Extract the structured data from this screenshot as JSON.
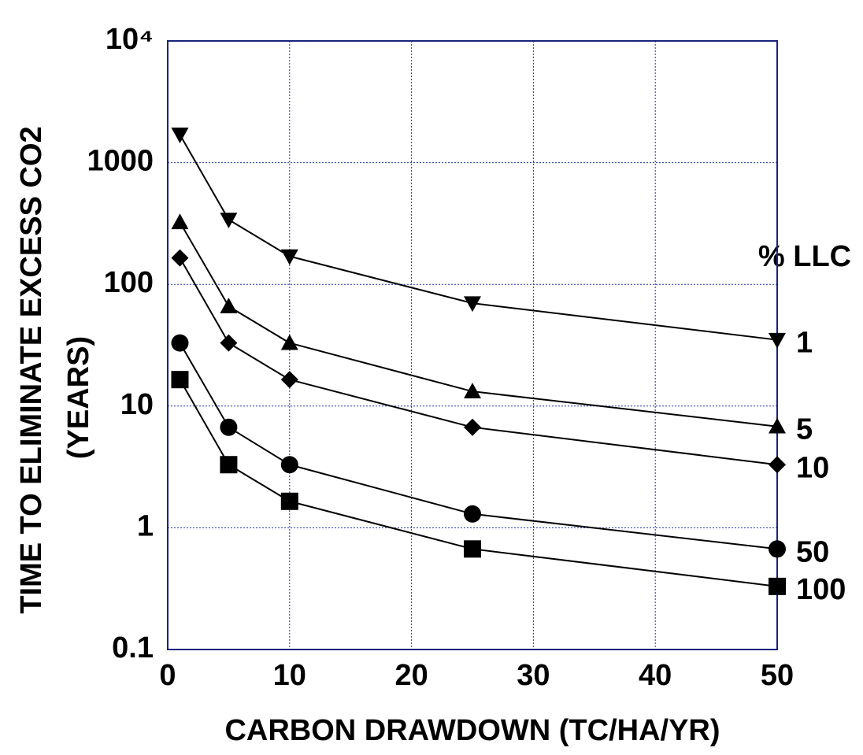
{
  "chart_data": {
    "type": "line",
    "ylabel": [
      "TIME TO ELIMINATE EXCESS CO2",
      "(YEARS)"
    ],
    "xlabel": "CARBON DRAWDOWN (TC/HA/YR)",
    "legend_title": "% LLC",
    "x": [
      1,
      5,
      10,
      25,
      50
    ],
    "xlim": [
      0,
      50
    ],
    "xticks": [
      0,
      10,
      20,
      30,
      40,
      50
    ],
    "ylim": [
      0.1,
      10000
    ],
    "yscale": "log",
    "yticks": [
      0.1,
      1,
      10,
      100,
      1000,
      {
        "value": 10000,
        "label": "10⁴"
      }
    ],
    "grid": true,
    "series": [
      {
        "name": "1",
        "color": "#000000",
        "marker": "triangle-down",
        "values": [
          1700,
          340,
          170,
          70,
          35
        ]
      },
      {
        "name": "5",
        "color": "#000000",
        "marker": "triangle-up",
        "values": [
          324,
          66,
          33,
          13.2,
          6.8
        ]
      },
      {
        "name": "10",
        "color": "#000000",
        "marker": "diamond",
        "values": [
          165,
          33,
          16.5,
          6.7,
          3.3
        ]
      },
      {
        "name": "50",
        "color": "#000000",
        "marker": "circle",
        "values": [
          33,
          6.7,
          3.3,
          1.3,
          0.67
        ]
      },
      {
        "name": "100",
        "color": "#000000",
        "marker": "square",
        "values": [
          16.5,
          3.3,
          1.65,
          0.67,
          0.33
        ]
      }
    ]
  }
}
